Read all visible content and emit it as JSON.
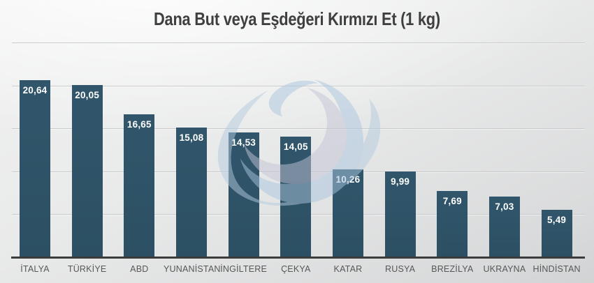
{
  "title": "Dana But veya Eşdeğeri Kırmızı Et (1 kg)",
  "chart_data": {
    "type": "bar",
    "title": "Dana But veya Eşdeğeri Kırmızı Et (1 kg)",
    "categories": [
      "İTALYA",
      "TÜRKİYE",
      "ABD",
      "YUNANİSTAN",
      "İNGİLTERE",
      "ÇEKYA",
      "KATAR",
      "RUSYA",
      "BREZİLYA",
      "UKRAYNA",
      "HİNDİSTAN"
    ],
    "values": [
      20.64,
      20.05,
      16.65,
      15.08,
      14.53,
      14.05,
      10.26,
      9.99,
      7.69,
      7.03,
      5.49
    ],
    "value_labels": [
      "20,64",
      "20,05",
      "16,65",
      "15,08",
      "14,53",
      "14,05",
      "10,26",
      "9,99",
      "7,69",
      "7,03",
      "5,49"
    ],
    "xlabel": "",
    "ylabel": "",
    "ylim": [
      0,
      25
    ],
    "gridline_step": 5,
    "grid": true,
    "legend": false,
    "value_labels_position": "inside-top",
    "decimal_separator": ","
  },
  "icons": {
    "watermark": "globe-logo-icon"
  },
  "colors": {
    "bar": "#31566B",
    "bar_bottom": "#2C4F63",
    "value_label": "#FFFFFF",
    "title": "#3F3F3F",
    "category_label": "#575757",
    "gridline": "#C7C9CA",
    "axis": "#3B3B3B",
    "background_top": "#F1F1F1",
    "background_bottom": "#D2D3D4",
    "watermark_blue": "#A9C6DE",
    "watermark_blue_light": "#B3CBDF",
    "watermark_lavender": "#C4C4D6"
  }
}
